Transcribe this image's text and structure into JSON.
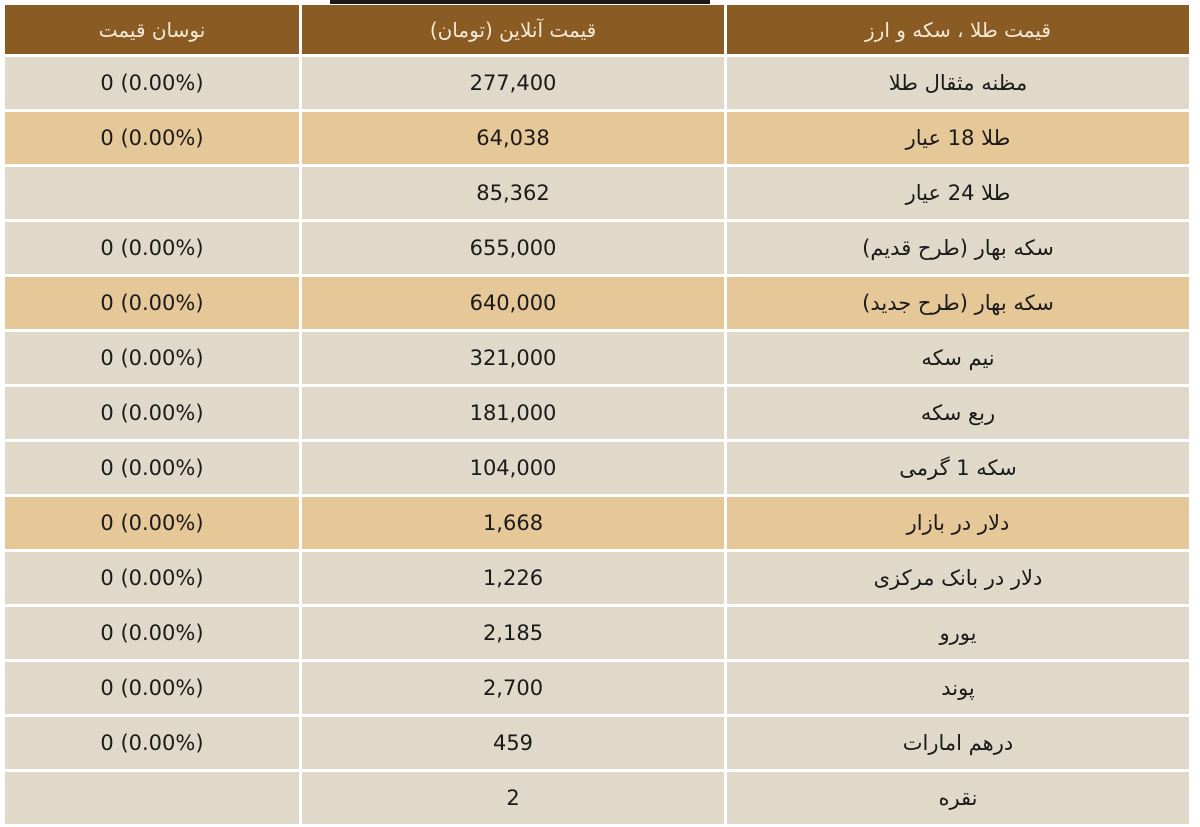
{
  "table": {
    "headers": {
      "change": "نوسان قیمت",
      "price": "قیمت آنلاین (تومان)",
      "item": "قیمت طلا ، سکه و ارز"
    },
    "rows": [
      {
        "item": "مظنه مثقال طلا",
        "price": "277,400",
        "change": "0 (0.00%)",
        "highlight": false
      },
      {
        "item": "طلا 18 عیار",
        "price": "64,038",
        "change": "0 (0.00%)",
        "highlight": true
      },
      {
        "item": "طلا 24 عیار",
        "price": "85,362",
        "change": "",
        "highlight": false
      },
      {
        "item": "سکه بهار (طرح قدیم)",
        "price": "655,000",
        "change": "0 (0.00%)",
        "highlight": false
      },
      {
        "item": "سکه بهار (طرح جدید)",
        "price": "640,000",
        "change": "0 (0.00%)",
        "highlight": true
      },
      {
        "item": "نیم سکه",
        "price": "321,000",
        "change": "0 (0.00%)",
        "highlight": false
      },
      {
        "item": "ربع سکه",
        "price": "181,000",
        "change": "0 (0.00%)",
        "highlight": false
      },
      {
        "item": "سکه 1 گرمی",
        "price": "104,000",
        "change": "0 (0.00%)",
        "highlight": false
      },
      {
        "item": "دلار در بازار",
        "price": "1,668",
        "change": "0 (0.00%)",
        "highlight": true
      },
      {
        "item": "دلار در بانک مرکزی",
        "price": "1,226",
        "change": "0 (0.00%)",
        "highlight": false
      },
      {
        "item": "یورو",
        "price": "2,185",
        "change": "0 (0.00%)",
        "highlight": false
      },
      {
        "item": "پوند",
        "price": "2,700",
        "change": "0 (0.00%)",
        "highlight": false
      },
      {
        "item": "درهم امارات",
        "price": "459",
        "change": "0 (0.00%)",
        "highlight": false
      },
      {
        "item": "نقره",
        "price": "2",
        "change": "",
        "highlight": false
      }
    ]
  },
  "colors": {
    "header_bg": "#8a5b23",
    "row_bg": "#e0d8c8",
    "highlight_bg": "#e6c797"
  }
}
